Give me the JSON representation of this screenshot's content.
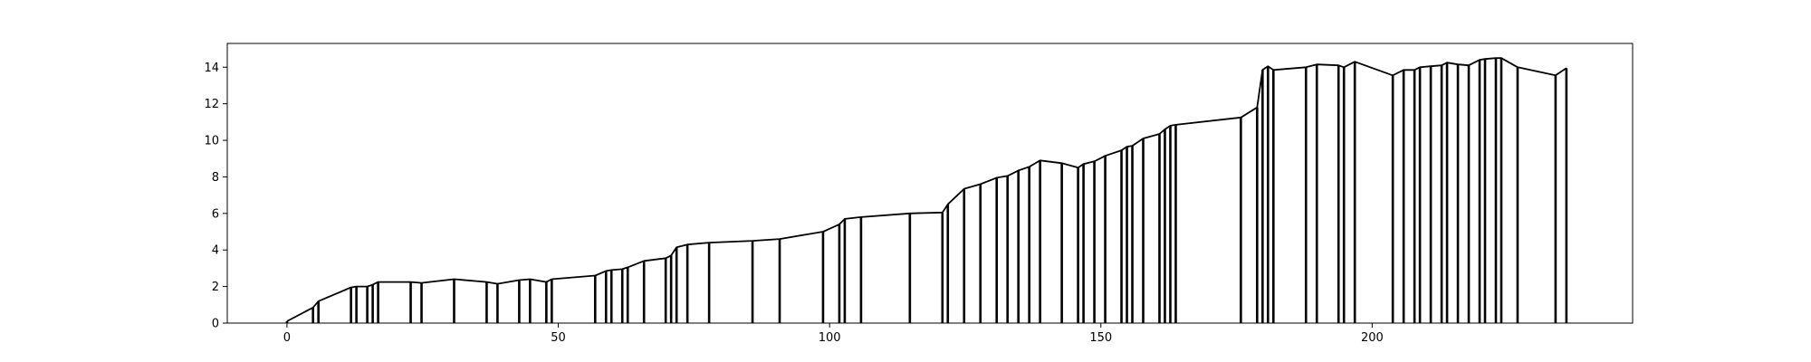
{
  "chart_data": {
    "type": "line",
    "title": "",
    "xlabel": "",
    "ylabel": "",
    "xlim": [
      -11,
      248
    ],
    "ylim": [
      0,
      15.3
    ],
    "grid": false,
    "legend": "none",
    "x_ticks": [
      0,
      50,
      100,
      150,
      200
    ],
    "y_ticks": [
      0,
      2,
      4,
      6,
      8,
      10,
      12,
      14
    ],
    "line_color": "#000000",
    "series": [
      {
        "x": [
          0,
          4.8,
          5.8,
          11.8,
          12.8,
          14.8,
          15.8,
          16.8,
          22.8,
          24.8,
          30.8,
          36.8,
          38.8,
          42.8,
          44.8,
          47.8,
          48.8,
          56.8,
          58.8,
          59.8,
          61.8,
          62.8,
          65.8,
          69.8,
          70.8,
          71.8,
          73.8,
          77.8,
          85.8,
          90.8,
          98.8,
          101.8,
          102.8,
          105.8,
          114.8,
          120.8,
          121.8,
          124.8,
          127.8,
          130.8,
          132.8,
          134.8,
          136.8,
          138.8,
          142.8,
          145.8,
          146.8,
          148.8,
          150.8,
          153.8,
          154.8,
          155.8,
          157.8,
          160.8,
          161.8,
          162.8,
          163.8,
          175.8,
          178.8,
          179.8,
          180.8,
          181.8,
          187.8,
          189.8,
          193.8,
          194.8,
          196.8,
          203.8,
          205.8,
          207.8,
          208.8,
          210.8,
          212.8,
          213.8,
          215.8,
          217.8,
          219.8,
          220.8,
          222.8,
          223.8,
          226.8,
          233.8,
          235.8
        ],
        "y": [
          0.1,
          0.85,
          1.2,
          1.95,
          2.0,
          2.0,
          2.1,
          2.25,
          2.25,
          2.2,
          2.4,
          2.25,
          2.15,
          2.35,
          2.4,
          2.25,
          2.4,
          2.6,
          2.85,
          2.9,
          2.95,
          3.05,
          3.4,
          3.55,
          3.7,
          4.15,
          4.3,
          4.4,
          4.5,
          4.6,
          5.0,
          5.4,
          5.7,
          5.8,
          6.0,
          6.05,
          6.5,
          7.35,
          7.6,
          7.95,
          8.05,
          8.35,
          8.55,
          8.9,
          8.75,
          8.5,
          8.7,
          8.85,
          9.15,
          9.45,
          9.65,
          9.7,
          10.1,
          10.35,
          10.6,
          10.8,
          10.85,
          11.25,
          11.8,
          13.85,
          14.05,
          13.85,
          14.0,
          14.15,
          14.1,
          14.0,
          14.3,
          13.55,
          13.85,
          13.85,
          14.0,
          14.05,
          14.1,
          14.25,
          14.15,
          14.1,
          14.4,
          14.45,
          14.5,
          14.5,
          14.0,
          13.55,
          13.95
        ]
      }
    ]
  }
}
